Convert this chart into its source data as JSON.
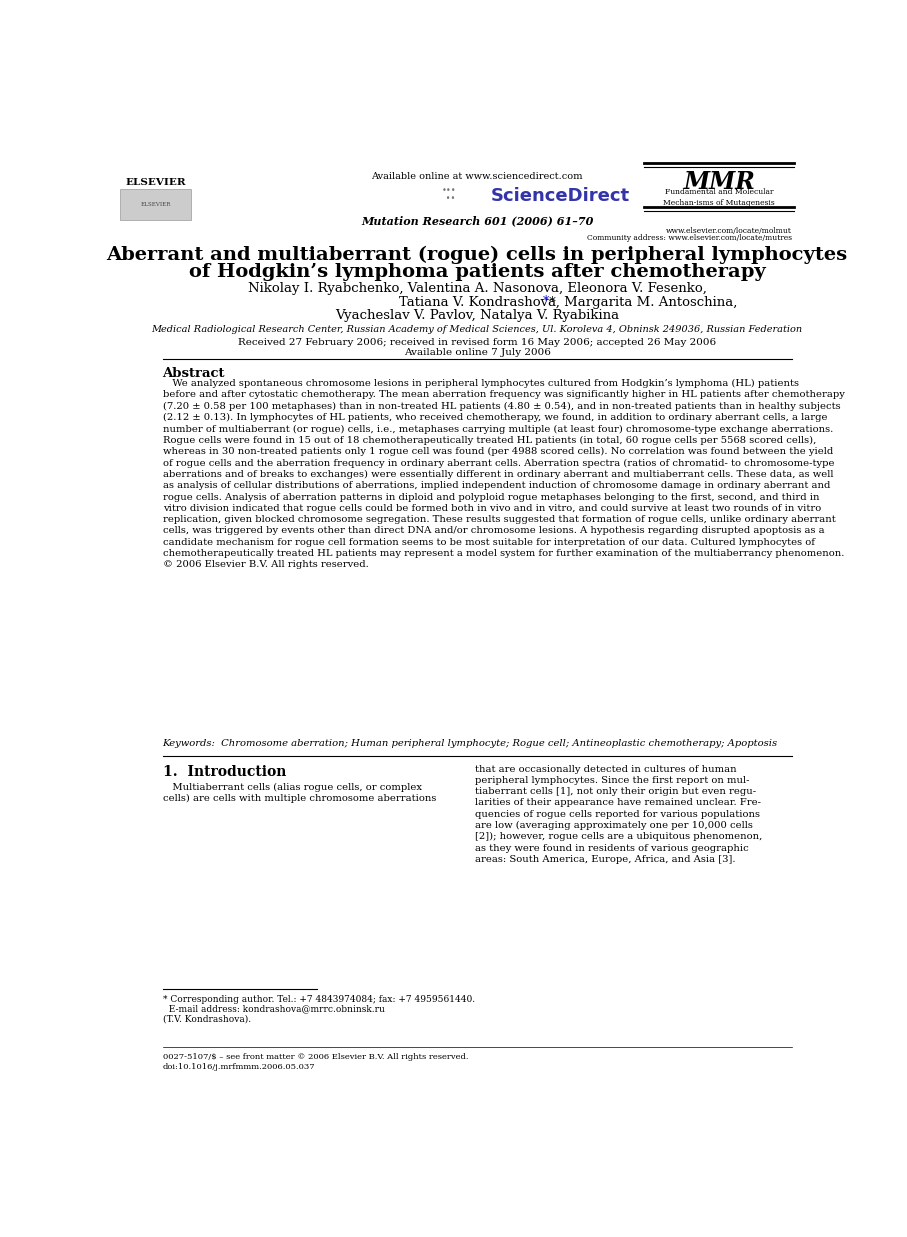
{
  "page_width": 9.07,
  "page_height": 12.37,
  "background_color": "#ffffff",
  "header_available_online": "Available online at www.sciencedirect.com",
  "header_journal": "Mutation Research 601 (2006) 61–70",
  "header_url1": "www.elsevier.com/locate/molmut",
  "header_url2": "Community address: www.elsevier.com/locate/mutres",
  "header_mmr_text": "Fundamental and Molecular\nMechan­isms of Mutagenesis",
  "title_line1": "Aberrant and multiaberrant (rogue) cells in peripheral lymphocytes",
  "title_line2": "of Hodgkin’s lymphoma patients after chemotherapy",
  "authors_line1": "Nikolay I. Ryabchenko, Valentina A. Nasonova, Eleonora V. Fesenko,",
  "authors_line2a": "Tatiana V. Kondrashova",
  "authors_line2b": " *, Margarita M. Antoschina,",
  "authors_line3": "Vyacheslav V. Pavlov, Natalya V. Ryabikina",
  "affiliation": "Medical Radiological Research Center, Russian Academy of Medical Sciences, Ul. Koroleva 4, Obninsk 249036, Russian Federation",
  "received": "Received 27 February 2006; received in revised form 16 May 2006; accepted 26 May 2006",
  "available_online": "Available online 7 July 2006",
  "abstract_title": "Abstract",
  "abstract_text": "   We analyzed spontaneous chromosome lesions in peripheral lymphocytes cultured from Hodgkin’s lymphoma (HL) patients\nbefore and after cytostatic chemotherapy. The mean aberration frequency was significantly higher in HL patients after chemotherapy\n(7.20 ± 0.58 per 100 metaphases) than in non-treated HL patients (4.80 ± 0.54), and in non-treated patients than in healthy subjects\n(2.12 ± 0.13). In lymphocytes of HL patients, who received chemotherapy, we found, in addition to ordinary aberrant cells, a large\nnumber of multiaberrant (or rogue) cells, i.e., metaphases carrying multiple (at least four) chromosome-type exchange aberrations.\nRogue cells were found in 15 out of 18 chemotherapeutically treated HL patients (in total, 60 rogue cells per 5568 scored cells),\nwhereas in 30 non-treated patients only 1 rogue cell was found (per 4988 scored cells). No correlation was found between the yield\nof rogue cells and the aberration frequency in ordinary aberrant cells. Aberration spectra (ratios of chromatid- to chromosome-type\naberrations and of breaks to exchanges) were essentially different in ordinary aberrant and multiaberrant cells. These data, as well\nas analysis of cellular distributions of aberrations, implied independent induction of chromosome damage in ordinary aberrant and\nrogue cells. Analysis of aberration patterns in diploid and polyploid rogue metaphases belonging to the first, second, and third in\nvitro division indicated that rogue cells could be formed both in vivo and in vitro, and could survive at least two rounds of in vitro\nreplication, given blocked chromosome segregation. These results suggested that formation of rogue cells, unlike ordinary aberrant\ncells, was triggered by events other than direct DNA and/or chromosome lesions. A hypothesis regarding disrupted apoptosis as a\ncandidate mechanism for rogue cell formation seems to be most suitable for interpretation of our data. Cultured lymphocytes of\nchemotherapeutically treated HL patients may represent a model system for further examination of the multiaberrancy phenomenon.\n© 2006 Elsevier B.V. All rights reserved.",
  "keywords": "Keywords:  Chromosome aberration; Human peripheral lymphocyte; Rogue cell; Antineoplastic chemotherapy; Apoptosis",
  "section_title": "1.  Introduction",
  "intro_col1": "   Multiaberrant cells (alias rogue cells, or complex\ncells) are cells with multiple chromosome aberrations",
  "intro_col2": "that are occasionally detected in cultures of human\nperipheral lymphocytes. Since the first report on mul-\ntiaberrant cells [1], not only their origin but even regu-\nlarities of their appearance have remained unclear. Fre-\nquencies of rogue cells reported for various populations\nare low (averaging approximately one per 10,000 cells\n[2]); however, rogue cells are a ubiquitous phenomenon,\nas they were found in residents of various geographic\nareas: South America, Europe, Africa, and Asia [3].",
  "footnote_line": "* Corresponding author. Tel.: +7 4843974084; fax: +7 4959561440.",
  "footnote_email": "  E-mail address: kondrashova@mrrc.obninsk.ru",
  "footnote_tv": "(T.V. Kondrashova).",
  "copyright_line": "0027-5107/$ – see front matter © 2006 Elsevier B.V. All rights reserved.",
  "doi_line": "doi:10.1016/j.mrfmmm.2006.05.037"
}
